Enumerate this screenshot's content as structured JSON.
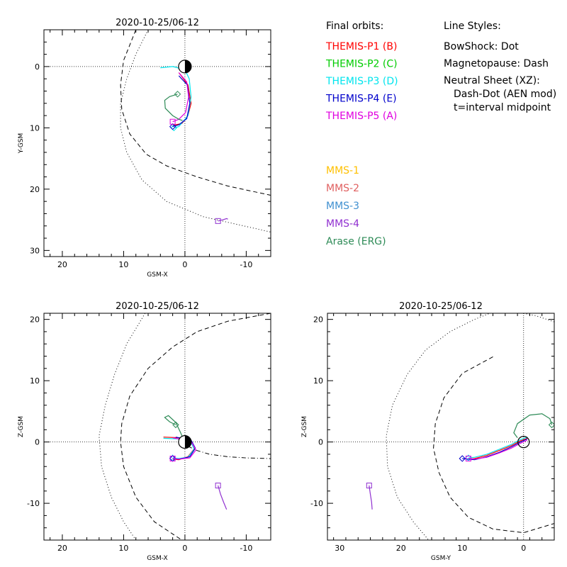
{
  "legend": {
    "orbits_title": "Final orbits:",
    "orbits": [
      {
        "label": "THEMIS-P1 (B)",
        "color": "#ff0000"
      },
      {
        "label": "THEMIS-P2 (C)",
        "color": "#00cc00"
      },
      {
        "label": "THEMIS-P3 (D)",
        "color": "#00e5ee"
      },
      {
        "label": "THEMIS-P4 (E)",
        "color": "#0000cc"
      },
      {
        "label": "THEMIS-P5 (A)",
        "color": "#e000e0"
      },
      {
        "label": "MMS-1",
        "color": "#ffc000"
      },
      {
        "label": "MMS-2",
        "color": "#e06060"
      },
      {
        "label": "MMS-3",
        "color": "#4090d0"
      },
      {
        "label": "MMS-4",
        "color": "#9030d0"
      },
      {
        "label": "Arase (ERG)",
        "color": "#2e8b57"
      }
    ],
    "styles_title": "Line Styles:",
    "styles": [
      "BowShock: Dot",
      "Magnetopause: Dash",
      "Neutral Sheet (XZ):",
      "  Dash-Dot (AEN mod)",
      "  t=interval midpoint"
    ]
  },
  "chart_data": [
    {
      "type": "line",
      "title": "2020-10-25/06-12",
      "xlabel": "GSM-X",
      "ylabel": "Y-GSM",
      "xlim": [
        23,
        -14
      ],
      "ylim": [
        -6,
        31
      ],
      "xticks": [
        20,
        10,
        0,
        -10
      ],
      "yticks": [
        0,
        10,
        20,
        30
      ],
      "earth": true,
      "bowshock": [
        [
          6,
          -6
        ],
        [
          8,
          -2
        ],
        [
          9.5,
          2
        ],
        [
          10.5,
          6
        ],
        [
          10.5,
          10
        ],
        [
          9.5,
          14
        ],
        [
          7,
          18.5
        ],
        [
          3,
          22
        ],
        [
          -3,
          24.5
        ],
        [
          -14,
          27
        ]
      ],
      "magnetopause": [
        [
          8,
          -6
        ],
        [
          10,
          -1
        ],
        [
          10.5,
          3
        ],
        [
          10.3,
          7
        ],
        [
          9,
          11
        ],
        [
          6.3,
          14.3
        ],
        [
          3,
          16.2
        ],
        [
          -2,
          18
        ],
        [
          -7,
          19.5
        ],
        [
          -14,
          21
        ]
      ],
      "series": [
        {
          "name": "THEMIS-P1 (B)",
          "color": "#ff0000",
          "points": [
            [
              1,
              1
            ],
            [
              -0.5,
              3
            ],
            [
              -1,
              6
            ],
            [
              -0.5,
              8
            ],
            [
              0.5,
              9.3
            ],
            [
              2,
              9.6
            ]
          ],
          "start_marker": null
        },
        {
          "name": "THEMIS-P3 (D)",
          "color": "#00e5ee",
          "points": [
            [
              4,
              0.2
            ],
            [
              2,
              0
            ],
            [
              0,
              0.5
            ],
            [
              -0.7,
              2
            ],
            [
              -1,
              5
            ],
            [
              -0.5,
              8
            ],
            [
              1,
              9.8
            ],
            [
              1.8,
              10
            ]
          ],
          "start_marker": "diamond"
        },
        {
          "name": "THEMIS-P4 (E)",
          "color": "#0000cc",
          "points": [
            [
              1,
              1.5
            ],
            [
              -0.4,
              3
            ],
            [
              -0.8,
              6
            ],
            [
              -0.3,
              8.5
            ],
            [
              1,
              9.5
            ],
            [
              2,
              9.8
            ]
          ],
          "start_marker": "diamond"
        },
        {
          "name": "THEMIS-P5 (A)",
          "color": "#e000e0",
          "points": [
            [
              1,
              1
            ],
            [
              -0.3,
              2.5
            ],
            [
              -0.6,
              5
            ],
            [
              -0.1,
              7.5
            ],
            [
              1,
              8.6
            ],
            [
              2,
              9
            ]
          ],
          "start_marker": "square"
        },
        {
          "name": "Arase (ERG)",
          "color": "#2e8b57",
          "points": [
            [
              1.2,
              4.5
            ],
            [
              2.5,
              4.9
            ],
            [
              3.3,
              5.5
            ],
            [
              3.2,
              6.8
            ],
            [
              2,
              8
            ],
            [
              1,
              8.6
            ],
            [
              0.4,
              8.8
            ]
          ],
          "start_marker": "diamond"
        },
        {
          "name": "MMS-4",
          "color": "#9030d0",
          "points": [
            [
              -5.4,
              25.2
            ],
            [
              -6.2,
              25
            ],
            [
              -6.8,
              24.8
            ],
            [
              -7,
              24.9
            ]
          ],
          "start_marker": "square"
        }
      ]
    },
    {
      "type": "line",
      "title": "2020-10-25/06-12",
      "xlabel": "GSM-X",
      "ylabel": "Z-GSM",
      "xlim": [
        23,
        -14
      ],
      "ylim": [
        -16,
        21
      ],
      "xticks": [
        20,
        10,
        0,
        -10
      ],
      "yticks": [
        -10,
        0,
        10,
        20
      ],
      "earth": true,
      "bowshock": [
        [
          6.5,
          21
        ],
        [
          9.5,
          16
        ],
        [
          11.5,
          11
        ],
        [
          13,
          6
        ],
        [
          14,
          1
        ],
        [
          13.6,
          -4
        ],
        [
          12,
          -9
        ],
        [
          10,
          -13
        ],
        [
          8,
          -16
        ]
      ],
      "magnetopause": [
        [
          -14,
          21
        ],
        [
          -7,
          19.7
        ],
        [
          -2,
          18
        ],
        [
          2,
          15.5
        ],
        [
          6,
          12
        ],
        [
          9,
          7.5
        ],
        [
          10.3,
          3
        ],
        [
          10.5,
          0
        ],
        [
          10,
          -4
        ],
        [
          8,
          -9
        ],
        [
          5,
          -13
        ],
        [
          2,
          -15
        ],
        [
          0.5,
          -16
        ]
      ],
      "neutral_sheet": [
        [
          -0.5,
          -0.7
        ],
        [
          -2,
          -1.4
        ],
        [
          -4,
          -2
        ],
        [
          -7,
          -2.4
        ],
        [
          -10,
          -2.6
        ],
        [
          -14,
          -2.7
        ]
      ],
      "series": [
        {
          "name": "THEMIS-P1 (B)",
          "color": "#ff0000",
          "points": [
            [
              3.5,
              0.8
            ],
            [
              1,
              0.7
            ],
            [
              -1,
              0.2
            ],
            [
              -1.6,
              -1
            ],
            [
              -0.5,
              -2.4
            ],
            [
              1,
              -2.9
            ],
            [
              2,
              -2.8
            ]
          ],
          "start_marker": null
        },
        {
          "name": "THEMIS-P3 (D)",
          "color": "#00e5ee",
          "points": [
            [
              3.5,
              0.6
            ],
            [
              1,
              0.5
            ],
            [
              -1,
              0
            ],
            [
              -1.5,
              -1.2
            ],
            [
              -0.5,
              -2.5
            ],
            [
              1,
              -2.7
            ],
            [
              2,
              -2.6
            ]
          ],
          "start_marker": "diamond"
        },
        {
          "name": "THEMIS-P4 (E)",
          "color": "#0000cc",
          "points": [
            [
              1.5,
              0.8
            ],
            [
              -1,
              0.3
            ],
            [
              -1.7,
              -1
            ],
            [
              -0.8,
              -2.4
            ],
            [
              1,
              -2.8
            ],
            [
              2,
              -2.7
            ]
          ],
          "start_marker": "diamond"
        },
        {
          "name": "THEMIS-P5 (A)",
          "color": "#e000e0",
          "points": [
            [
              2,
              0.7
            ],
            [
              -1,
              0.1
            ],
            [
              -1.8,
              -1.3
            ],
            [
              -0.8,
              -2.6
            ],
            [
              1,
              -2.8
            ],
            [
              2,
              -2.7
            ]
          ],
          "start_marker": "square"
        },
        {
          "name": "Arase (ERG)",
          "color": "#2e8b57",
          "points": [
            [
              1.5,
              2.8
            ],
            [
              2.5,
              3.3
            ],
            [
              3.3,
              4
            ],
            [
              2.7,
              4.3
            ],
            [
              1.5,
              3.2
            ],
            [
              0.7,
              1.5
            ],
            [
              0.4,
              0.8
            ]
          ],
          "start_marker": "diamond"
        },
        {
          "name": "MMS-4",
          "color": "#9030d0",
          "points": [
            [
              -5.4,
              -7.1
            ],
            [
              -5.8,
              -8.5
            ],
            [
              -6.3,
              -9.8
            ],
            [
              -6.8,
              -11
            ]
          ],
          "start_marker": "square"
        }
      ]
    },
    {
      "type": "line",
      "title": "2020-10-25/06-12",
      "xlabel": "GSM-Y",
      "ylabel": "Z-GSM",
      "xlim": [
        32,
        -5
      ],
      "ylim": [
        -16,
        21
      ],
      "xticks": [
        30,
        20,
        10,
        0
      ],
      "yticks": [
        -10,
        0,
        10,
        20
      ],
      "earth": "circle",
      "bowshock": [
        [
          -5,
          19.6
        ],
        [
          -2,
          20.6
        ],
        [
          1,
          21.2
        ],
        [
          4,
          21.6
        ],
        [
          8,
          20
        ],
        [
          12,
          18
        ],
        [
          16,
          15
        ],
        [
          19,
          11
        ],
        [
          21.4,
          6
        ],
        [
          22.4,
          1
        ],
        [
          22.2,
          -4
        ],
        [
          20.6,
          -9
        ],
        [
          18,
          -13
        ],
        [
          15.5,
          -16
        ]
      ],
      "magnetopause": [
        [
          5,
          13.9
        ],
        [
          10,
          11.2
        ],
        [
          13,
          7.2
        ],
        [
          14.4,
          3
        ],
        [
          14.7,
          -1
        ],
        [
          13.8,
          -5
        ],
        [
          12,
          -9
        ],
        [
          9,
          -12.3
        ],
        [
          5,
          -14.2
        ],
        [
          0,
          -14.8
        ],
        [
          -5,
          -13.3
        ]
      ],
      "series": [
        {
          "name": "THEMIS-P1 (B)",
          "color": "#ff0000",
          "points": [
            [
              -0.6,
              0.6
            ],
            [
              0.5,
              0.2
            ],
            [
              2,
              -0.6
            ],
            [
              4,
              -1.4
            ],
            [
              6,
              -2.2
            ],
            [
              8,
              -2.7
            ],
            [
              9,
              -2.8
            ]
          ],
          "start_marker": null
        },
        {
          "name": "THEMIS-P3 (D)",
          "color": "#00e5ee",
          "points": [
            [
              -0.6,
              0.8
            ],
            [
              0.5,
              0.4
            ],
            [
              2,
              -0.4
            ],
            [
              4,
              -1.2
            ],
            [
              6,
              -2
            ],
            [
              8,
              -2.5
            ],
            [
              9,
              -2.6
            ]
          ],
          "start_marker": "diamond"
        },
        {
          "name": "THEMIS-P4 (E)",
          "color": "#0000cc",
          "points": [
            [
              -0.6,
              0.5
            ],
            [
              0.5,
              0
            ],
            [
              2,
              -0.8
            ],
            [
              4,
              -1.7
            ],
            [
              6,
              -2.4
            ],
            [
              8,
              -2.9
            ],
            [
              10,
              -2.7
            ]
          ],
          "start_marker": "diamond"
        },
        {
          "name": "THEMIS-P5 (A)",
          "color": "#e000e0",
          "points": [
            [
              -0.6,
              0.3
            ],
            [
              0.5,
              -0.2
            ],
            [
              2,
              -1
            ],
            [
              4,
              -1.8
            ],
            [
              6,
              -2.5
            ],
            [
              8,
              -2.8
            ],
            [
              9,
              -2.7
            ]
          ],
          "start_marker": "square"
        },
        {
          "name": "Arase (ERG)",
          "color": "#2e8b57",
          "points": [
            [
              -4.6,
              2.8
            ],
            [
              -4.3,
              3.8
            ],
            [
              -3,
              4.6
            ],
            [
              -1,
              4.4
            ],
            [
              1,
              3
            ],
            [
              1.6,
              1.5
            ],
            [
              1,
              0.7
            ]
          ],
          "start_marker": "diamond"
        },
        {
          "name": "MMS-4",
          "color": "#9030d0",
          "points": [
            [
              25.2,
              -7.1
            ],
            [
              25,
              -8.5
            ],
            [
              24.8,
              -9.8
            ],
            [
              24.7,
              -11
            ]
          ],
          "start_marker": "square"
        }
      ]
    }
  ]
}
